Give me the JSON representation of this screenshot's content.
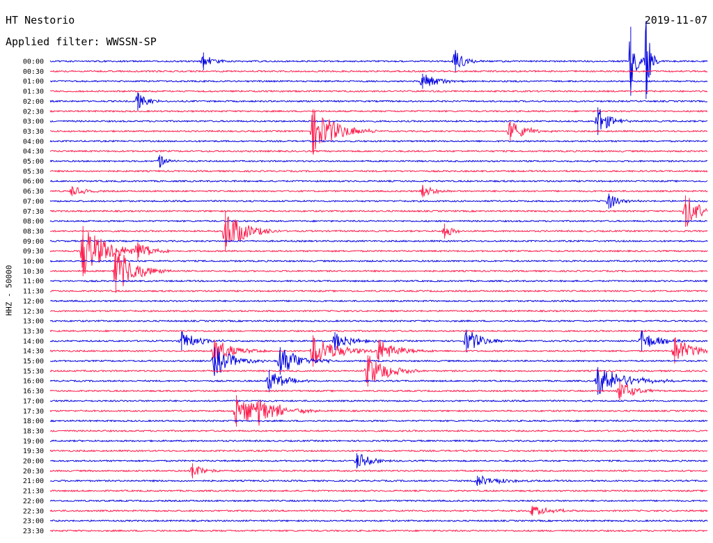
{
  "header": {
    "station": "HT Nestorio",
    "filter": "Applied filter: WWSSN-SP",
    "date": "2019-11-07"
  },
  "chart_data": {
    "type": "line",
    "title": "HT Nestorio",
    "subtitle": "Applied filter: WWSSN-SP",
    "ylabel": "HHZ - 50000",
    "date": "2019-11-07",
    "rows": [
      "00:00",
      "00:30",
      "01:00",
      "01:30",
      "02:00",
      "02:30",
      "03:00",
      "03:30",
      "04:00",
      "04:30",
      "05:00",
      "05:30",
      "06:00",
      "06:30",
      "07:00",
      "07:30",
      "08:00",
      "08:30",
      "09:00",
      "09:30",
      "10:00",
      "10:30",
      "11:00",
      "11:30",
      "12:00",
      "12:30",
      "13:00",
      "13:30",
      "14:00",
      "14:30",
      "15:00",
      "15:30",
      "16:00",
      "16:30",
      "17:00",
      "17:30",
      "18:00",
      "18:30",
      "19:00",
      "19:30",
      "20:00",
      "20:30",
      "21:00",
      "21:30",
      "22:00",
      "22:30",
      "23:00",
      "23:30"
    ],
    "trace_colors": [
      "#0000e0",
      "#ff1a4a"
    ],
    "events": [
      {
        "row": 0,
        "minute": 7.0,
        "amp": 14,
        "dur": 1.0
      },
      {
        "row": 0,
        "minute": 18.5,
        "amp": 18,
        "dur": 1.2
      },
      {
        "row": 0,
        "minute": 26.5,
        "amp": 55,
        "dur": 0.6
      },
      {
        "row": 0,
        "minute": 27.2,
        "amp": 60,
        "dur": 0.6
      },
      {
        "row": 2,
        "minute": 17.0,
        "amp": 12,
        "dur": 2.0
      },
      {
        "row": 4,
        "minute": 4.0,
        "amp": 14,
        "dur": 1.2
      },
      {
        "row": 6,
        "minute": 25.0,
        "amp": 22,
        "dur": 1.5
      },
      {
        "row": 7,
        "minute": 12.0,
        "amp": 35,
        "dur": 3.0
      },
      {
        "row": 7,
        "minute": 21.0,
        "amp": 16,
        "dur": 2.0
      },
      {
        "row": 10,
        "minute": 5.0,
        "amp": 10,
        "dur": 1.0
      },
      {
        "row": 13,
        "minute": 1.0,
        "amp": 8,
        "dur": 1.5
      },
      {
        "row": 13,
        "minute": 17.0,
        "amp": 10,
        "dur": 1.5
      },
      {
        "row": 14,
        "minute": 25.5,
        "amp": 12,
        "dur": 1.5
      },
      {
        "row": 15,
        "minute": 29.0,
        "amp": 25,
        "dur": 2.0
      },
      {
        "row": 17,
        "minute": 8.0,
        "amp": 32,
        "dur": 2.5
      },
      {
        "row": 17,
        "minute": 18.0,
        "amp": 12,
        "dur": 1.0
      },
      {
        "row": 19,
        "minute": 1.5,
        "amp": 40,
        "dur": 3.0
      },
      {
        "row": 19,
        "minute": 4.0,
        "amp": 14,
        "dur": 2.0
      },
      {
        "row": 21,
        "minute": 3.0,
        "amp": 35,
        "dur": 2.5
      },
      {
        "row": 28,
        "minute": 6.0,
        "amp": 15,
        "dur": 2.0
      },
      {
        "row": 28,
        "minute": 13.0,
        "amp": 14,
        "dur": 2.0
      },
      {
        "row": 28,
        "minute": 19.0,
        "amp": 18,
        "dur": 2.0
      },
      {
        "row": 28,
        "minute": 27.0,
        "amp": 16,
        "dur": 2.0
      },
      {
        "row": 29,
        "minute": 7.5,
        "amp": 18,
        "dur": 2.5
      },
      {
        "row": 29,
        "minute": 12.0,
        "amp": 25,
        "dur": 3.0
      },
      {
        "row": 29,
        "minute": 15.0,
        "amp": 18,
        "dur": 2.5
      },
      {
        "row": 29,
        "minute": 28.5,
        "amp": 20,
        "dur": 2.5
      },
      {
        "row": 30,
        "minute": 7.5,
        "amp": 22,
        "dur": 2.5
      },
      {
        "row": 30,
        "minute": 10.5,
        "amp": 22,
        "dur": 2.5
      },
      {
        "row": 31,
        "minute": 14.5,
        "amp": 25,
        "dur": 2.5
      },
      {
        "row": 32,
        "minute": 10.0,
        "amp": 18,
        "dur": 2.0
      },
      {
        "row": 32,
        "minute": 25.0,
        "amp": 22,
        "dur": 3.5
      },
      {
        "row": 33,
        "minute": 26.0,
        "amp": 15,
        "dur": 2.0
      },
      {
        "row": 35,
        "minute": 8.5,
        "amp": 25,
        "dur": 3.0
      },
      {
        "row": 35,
        "minute": 9.5,
        "amp": 18,
        "dur": 3.0
      },
      {
        "row": 40,
        "minute": 14.0,
        "amp": 12,
        "dur": 2.0
      },
      {
        "row": 41,
        "minute": 6.5,
        "amp": 12,
        "dur": 1.5
      },
      {
        "row": 42,
        "minute": 19.5,
        "amp": 8,
        "dur": 3.0
      },
      {
        "row": 45,
        "minute": 22.0,
        "amp": 8,
        "dur": 2.5
      }
    ]
  }
}
